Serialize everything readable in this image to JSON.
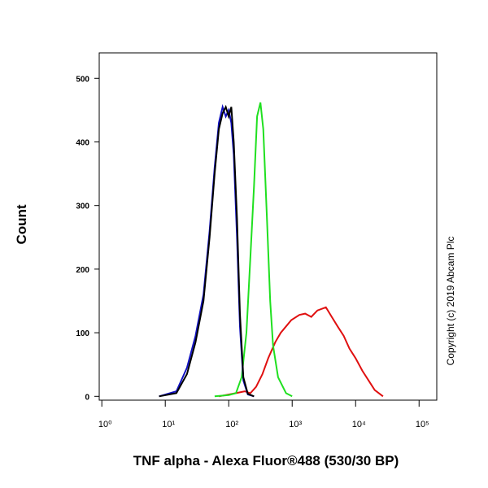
{
  "chart_data": {
    "type": "line",
    "x_label": "TNF alpha - Alexa Fluor®488 (530/30 BP)",
    "y_label": "Count",
    "annotation": "Copyright (c) 2019 Abcam Plc",
    "xscale": "log",
    "xlim": [
      0.91,
      190000
    ],
    "ylim": [
      -6,
      540
    ],
    "xticks": [
      {
        "value": 1,
        "label": "10⁰"
      },
      {
        "value": 10,
        "label": "10¹"
      },
      {
        "value": 100,
        "label": "10²"
      },
      {
        "value": 1000,
        "label": "10³"
      },
      {
        "value": 10000,
        "label": "10⁴"
      },
      {
        "value": 100000,
        "label": "10⁵"
      }
    ],
    "yticks": [
      0,
      100,
      200,
      300,
      400,
      500
    ],
    "series": [
      {
        "color": "#e01010",
        "x": [
          70,
          130,
          178,
          220,
          270,
          340,
          420,
          540,
          660,
          800,
          970,
          1300,
          1600,
          2000,
          2500,
          3400,
          4200,
          5200,
          6500,
          8000,
          10000,
          12800,
          16000,
          20000,
          27000
        ],
        "values": [
          0,
          5,
          8,
          5,
          15,
          35,
          60,
          85,
          100,
          110,
          120,
          128,
          130,
          125,
          135,
          140,
          125,
          110,
          95,
          75,
          60,
          40,
          25,
          10,
          0
        ]
      },
      {
        "color": "#20e020",
        "x": [
          60,
          100,
          130,
          160,
          190,
          220,
          250,
          280,
          316,
          350,
          400,
          450,
          500,
          600,
          800,
          1000
        ],
        "values": [
          0,
          2,
          5,
          30,
          100,
          220,
          330,
          440,
          462,
          420,
          280,
          150,
          80,
          30,
          5,
          0
        ]
      },
      {
        "color": "#1010c0",
        "x": [
          8,
          15,
          22,
          30,
          40,
          50,
          60,
          70,
          80,
          90,
          100,
          110,
          120,
          135,
          150,
          170,
          200,
          250
        ],
        "values": [
          0,
          8,
          45,
          95,
          160,
          260,
          360,
          430,
          455,
          440,
          450,
          430,
          380,
          250,
          110,
          25,
          3,
          0
        ]
      },
      {
        "color": "#000000",
        "x": [
          8,
          15,
          22,
          30,
          40,
          50,
          60,
          70,
          80,
          90,
          100,
          110,
          120,
          135,
          150,
          170,
          200,
          250
        ],
        "values": [
          0,
          5,
          35,
          85,
          150,
          250,
          350,
          420,
          445,
          455,
          440,
          455,
          400,
          280,
          130,
          30,
          4,
          0
        ]
      }
    ]
  }
}
